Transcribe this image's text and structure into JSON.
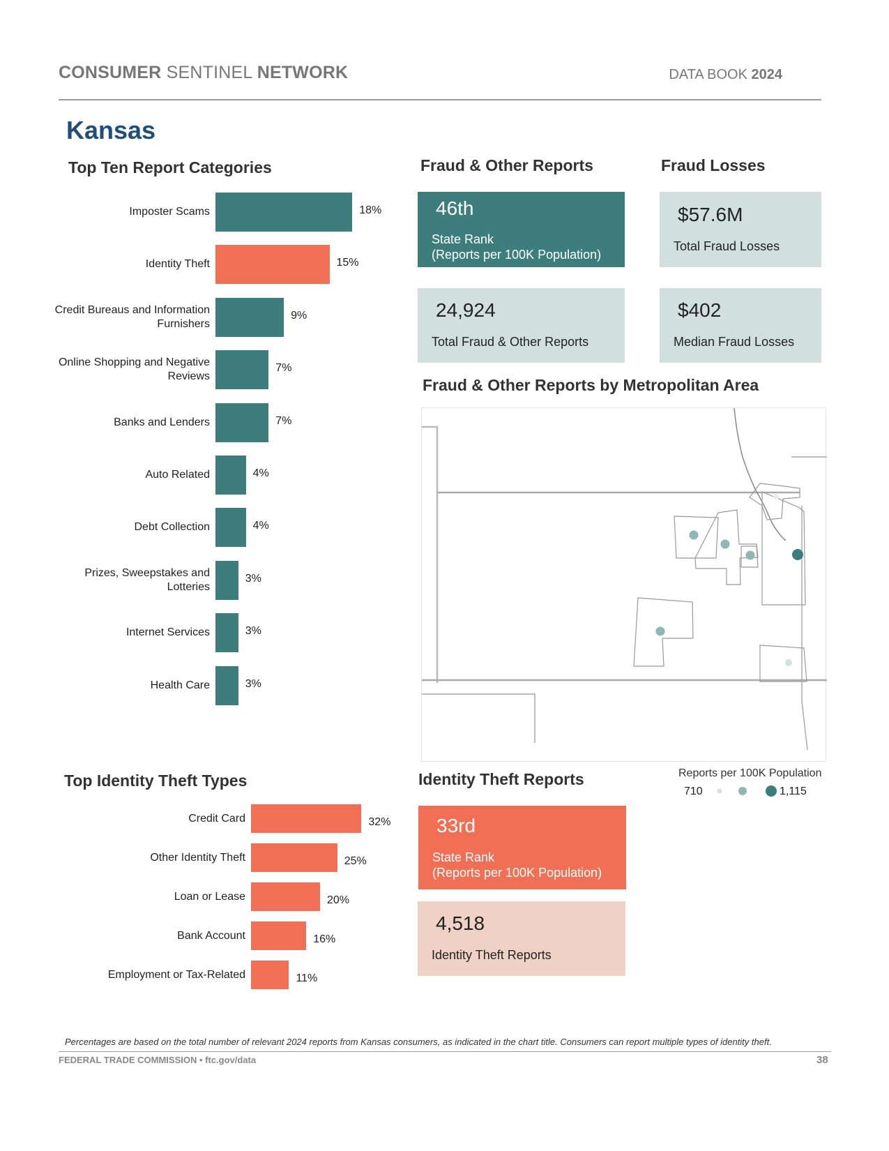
{
  "header": {
    "title_consumer": "CONSUMER",
    "title_sentinel": "SENTINEL",
    "title_network": "NETWORK",
    "data_book": "DATA BOOK",
    "year": "2024"
  },
  "state_name": "Kansas",
  "sections": {
    "top_ten": "Top Ten Report Categories",
    "fraud_other": "Fraud & Other Reports",
    "fraud_losses": "Fraud Losses",
    "metro": "Fraud & Other Reports by Metropolitan Area",
    "id_types": "Top Identity Theft Types",
    "id_reports": "Identity Theft Reports"
  },
  "stats": {
    "fraud_rank": "46th",
    "fraud_rank_label": "State Rank\n(Reports per 100K Population)",
    "total_losses": "$57.6M",
    "total_losses_label": "Total Fraud Losses",
    "total_reports": "24,924",
    "total_reports_label": "Total Fraud & Other Reports",
    "median_loss": "$402",
    "median_loss_label": "Median Fraud Losses",
    "id_rank": "33rd",
    "id_rank_label": "State Rank\n(Reports per 100K Population)",
    "id_reports": "4,518",
    "id_reports_label": "Identity Theft Reports"
  },
  "legend": {
    "title": "Reports per 100K Population",
    "min": "710",
    "max": "1,115"
  },
  "footer": {
    "note": "Percentages are based on the total number of relevant 2024 reports from Kansas consumers, as indicated in the chart title.  Consumers can report multiple types of identity theft.",
    "org": "FEDERAL TRADE COMMISSION • ftc.gov/data",
    "page": "38"
  },
  "colors": {
    "teal": "#3d7d7b",
    "coral": "#f06f55",
    "light_teal": "#d1e0dc",
    "light_coral": "#efd1c5",
    "title_blue": "#1f4e79"
  },
  "chart_data": [
    {
      "type": "bar",
      "title": "Top Ten Report Categories",
      "orientation": "horizontal",
      "categories": [
        "Imposter Scams",
        "Identity Theft",
        "Credit Bureaus and Information Furnishers",
        "Online Shopping and Negative Reviews",
        "Banks and Lenders",
        "Auto Related",
        "Debt Collection",
        "Prizes, Sweepstakes and Lotteries",
        "Internet Services",
        "Health Care"
      ],
      "values": [
        18,
        15,
        9,
        7,
        7,
        4,
        4,
        3,
        3,
        3
      ],
      "value_labels": [
        "18%",
        "15%",
        "9%",
        "7%",
        "7%",
        "4%",
        "4%",
        "3%",
        "3%",
        "3%"
      ],
      "highlight": "Identity Theft",
      "unit": "%"
    },
    {
      "type": "bar",
      "title": "Top Identity Theft Types",
      "orientation": "horizontal",
      "categories": [
        "Credit Card",
        "Other Identity Theft",
        "Loan or Lease",
        "Bank Account",
        "Employment or Tax-Related"
      ],
      "values": [
        32,
        25,
        20,
        16,
        11
      ],
      "value_labels": [
        "32%",
        "25%",
        "20%",
        "16%",
        "11%"
      ],
      "unit": "%"
    }
  ]
}
